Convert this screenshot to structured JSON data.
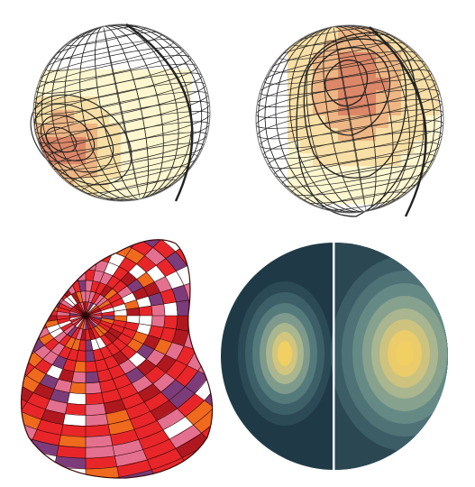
{
  "figure": {
    "panels": [
      {
        "id": "tl",
        "kind": "wireframe-sphere-with-heatmap-patch-lower-left"
      },
      {
        "id": "tr",
        "kind": "wireframe-sphere-with-heatmap-patch-center"
      },
      {
        "id": "bl",
        "kind": "deformed-red-mosaic-blob"
      },
      {
        "id": "br",
        "kind": "contour-disk-two-lobes"
      }
    ],
    "colors": {
      "background": "#ffffff",
      "grid": "#1a1a1a",
      "heat_pale": "#fdf6cf",
      "heat_light": "#f8dfa6",
      "heat_mid": "#eeb684",
      "heat_deep": "#dc8768",
      "disk_dark": "#1f3a46",
      "disk_teal": "#4f7276",
      "disk_yellow": "#f2cf63",
      "blob_red": "#e8262a",
      "blob_orange": "#f06a1e",
      "blob_pink": "#e47090",
      "blob_purple": "#7c3c7a"
    }
  }
}
